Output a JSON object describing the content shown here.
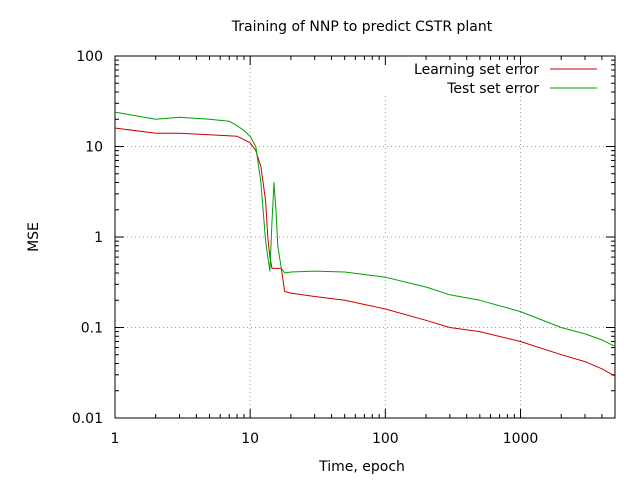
{
  "chart_data": {
    "type": "line",
    "title": "Training of NNP to predict CSTR plant",
    "xlabel": "Time, epoch",
    "ylabel": "MSE",
    "xscale": "log",
    "yscale": "log",
    "xlim": [
      1,
      5000
    ],
    "ylim": [
      0.01,
      100
    ],
    "x_ticks": [
      {
        "value": 1,
        "label": "1"
      },
      {
        "value": 10,
        "label": "10"
      },
      {
        "value": 100,
        "label": "100"
      },
      {
        "value": 1000,
        "label": "1000"
      }
    ],
    "y_ticks": [
      {
        "value": 100,
        "label": "100"
      },
      {
        "value": 10,
        "label": "10"
      },
      {
        "value": 1,
        "label": "1"
      },
      {
        "value": 0.1,
        "label": "0.1"
      },
      {
        "value": 0.01,
        "label": "0.01"
      }
    ],
    "grid": true,
    "legend_position": "top-right",
    "series": [
      {
        "name": "Learning set error",
        "color": "#cc0000",
        "x": [
          1,
          2,
          3,
          5,
          8,
          10,
          11,
          12,
          13,
          13.5,
          14,
          14.5,
          15,
          17,
          18,
          20,
          30,
          50,
          100,
          200,
          300,
          500,
          1000,
          2000,
          3000,
          4000,
          5000
        ],
        "y": [
          16,
          14,
          14,
          13.5,
          13,
          11,
          9,
          6,
          2.5,
          1,
          0.6,
          0.45,
          0.45,
          0.45,
          0.25,
          0.24,
          0.22,
          0.2,
          0.16,
          0.12,
          0.1,
          0.09,
          0.07,
          0.05,
          0.042,
          0.035,
          0.029
        ]
      },
      {
        "name": "Test set error",
        "color": "#00a000",
        "x": [
          1,
          2,
          3,
          5,
          7,
          8,
          9,
          10,
          11,
          12,
          13,
          13.5,
          14,
          14.5,
          15,
          15.5,
          16,
          17,
          18,
          20,
          30,
          50,
          100,
          200,
          300,
          500,
          1000,
          2000,
          3000,
          4000,
          5000
        ],
        "y": [
          24,
          20,
          21,
          20,
          19,
          17,
          15,
          13,
          10,
          4,
          0.9,
          0.6,
          0.42,
          1.5,
          4,
          2,
          0.8,
          0.45,
          0.4,
          0.41,
          0.42,
          0.41,
          0.36,
          0.28,
          0.23,
          0.2,
          0.15,
          0.1,
          0.085,
          0.073,
          0.062
        ]
      }
    ]
  }
}
